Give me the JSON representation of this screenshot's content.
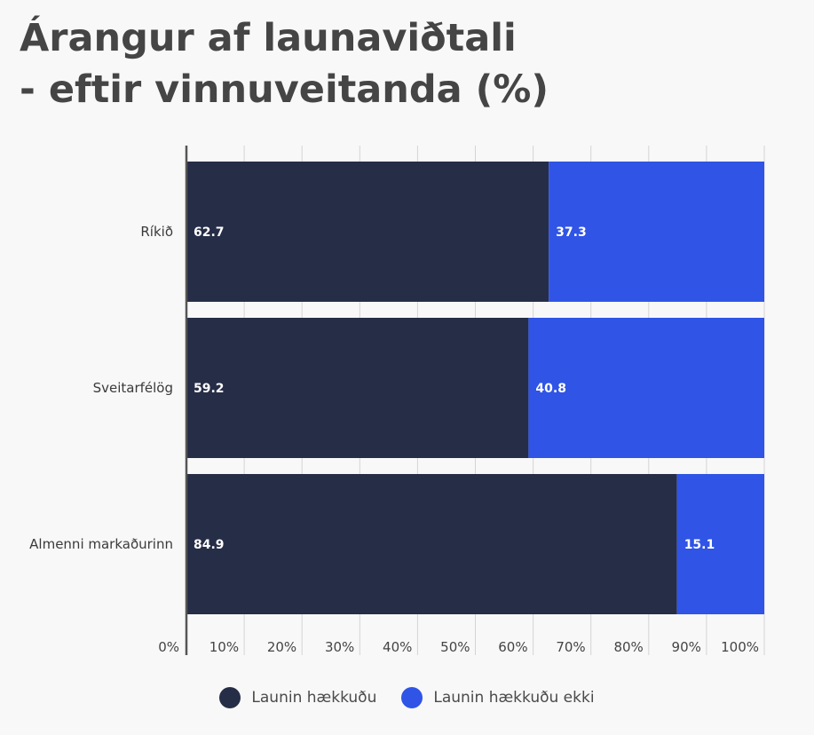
{
  "title_line1": "Árangur af launaviðtali",
  "title_line2": "- eftir vinnuveitanda (%)",
  "chart_data": {
    "type": "bar",
    "orientation": "horizontal",
    "stacked": true,
    "categories": [
      "Ríkið",
      "Sveitarfélög",
      "Almenni markaðurinn"
    ],
    "series": [
      {
        "name": "Launin hækkuðu",
        "values": [
          62.7,
          59.2,
          84.9
        ],
        "color": "#262d47"
      },
      {
        "name": "Launin hækkuðu ekki",
        "values": [
          37.3,
          40.8,
          15.1
        ],
        "color": "#2f54e6"
      }
    ],
    "xlim": [
      0,
      100
    ],
    "x_ticks": [
      "0%",
      "10%",
      "20%",
      "30%",
      "40%",
      "50%",
      "60%",
      "70%",
      "80%",
      "90%",
      "100%"
    ],
    "grid": true,
    "legend_position": "bottom-center"
  }
}
